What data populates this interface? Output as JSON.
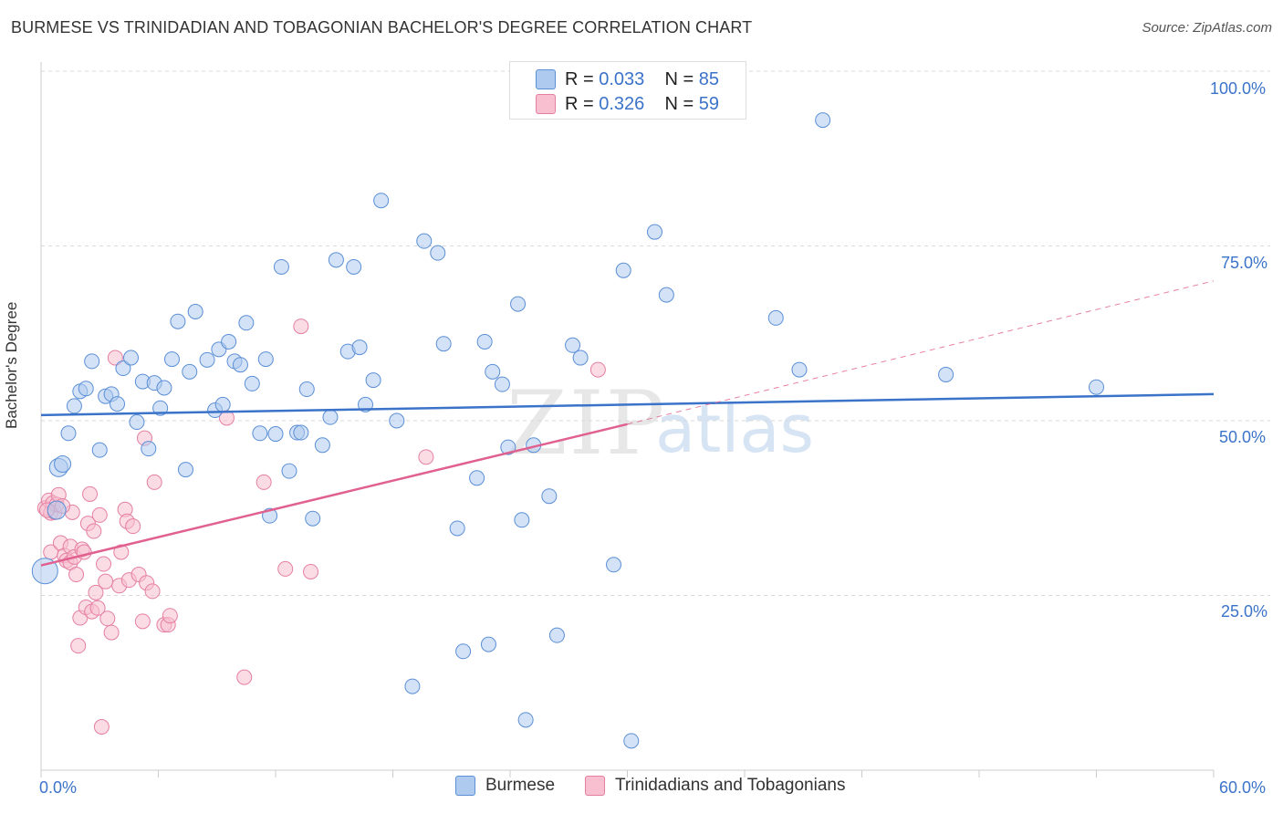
{
  "title": "BURMESE VS TRINIDADIAN AND TOBAGONIAN BACHELOR'S DEGREE CORRELATION CHART",
  "source": "Source: ZipAtlas.com",
  "watermark": {
    "zip": "ZIP",
    "atlas": "atlas"
  },
  "colors": {
    "burmese_fill": "#aecbef",
    "burmese_stroke": "#5b8fd6",
    "burmese_line": "#3b73c9",
    "trin_fill": "#f7bfd0",
    "trin_stroke": "#e57fa2",
    "trin_line": "#e0608f",
    "axis_label": "#3b73c9",
    "grid": "#d8d8d8"
  },
  "legend_top": {
    "rows": [
      {
        "r_label": "R = ",
        "r_value": "0.033",
        "n_label": "N = ",
        "n_value": "85"
      },
      {
        "r_label": "R = ",
        "r_value": "0.326",
        "n_label": "N = ",
        "n_value": "59"
      }
    ]
  },
  "legend_bottom": [
    "Burmese",
    "Trinidadians and Tobagonians"
  ],
  "chart_data": {
    "type": "scatter",
    "title": "BURMESE VS TRINIDADIAN AND TOBAGONIAN BACHELOR'S DEGREE CORRELATION CHART",
    "xlabel": "",
    "ylabel": "Bachelor's Degree",
    "xlim": [
      0,
      60
    ],
    "ylim": [
      0,
      100
    ],
    "x_tick_labels": [
      "0.0%",
      "60.0%"
    ],
    "y_tick_labels": [
      "25.0%",
      "50.0%",
      "75.0%",
      "100.0%"
    ],
    "y_ticks": [
      25,
      50,
      75,
      100
    ],
    "series": [
      {
        "name": "Burmese",
        "R": 0.033,
        "N": 85,
        "trend": {
          "x": [
            0,
            60
          ],
          "y": [
            50.8,
            53.8
          ],
          "style": "solid"
        },
        "points": [
          [
            0.2,
            28.5,
            14
          ],
          [
            0.8,
            37.2,
            10
          ],
          [
            0.9,
            43.3,
            10
          ],
          [
            1.1,
            43.8,
            9
          ],
          [
            1.4,
            48.2,
            8
          ],
          [
            1.7,
            52.1,
            8
          ],
          [
            2.0,
            54.2,
            8
          ],
          [
            2.3,
            54.6,
            8
          ],
          [
            2.6,
            58.5,
            8
          ],
          [
            3.0,
            45.8,
            8
          ],
          [
            3.3,
            53.5,
            8
          ],
          [
            3.6,
            53.8,
            8
          ],
          [
            3.9,
            52.4,
            8
          ],
          [
            4.2,
            57.5,
            8
          ],
          [
            4.6,
            59.0,
            8
          ],
          [
            4.9,
            49.8,
            8
          ],
          [
            5.2,
            55.6,
            8
          ],
          [
            5.5,
            46.0,
            8
          ],
          [
            5.8,
            55.4,
            8
          ],
          [
            6.1,
            51.8,
            8
          ],
          [
            6.3,
            54.7,
            8
          ],
          [
            6.7,
            58.8,
            8
          ],
          [
            7.0,
            64.2,
            8
          ],
          [
            7.4,
            43.0,
            8
          ],
          [
            7.6,
            57.0,
            8
          ],
          [
            7.9,
            65.6,
            8
          ],
          [
            8.5,
            58.7,
            8
          ],
          [
            8.9,
            51.5,
            8
          ],
          [
            9.1,
            60.2,
            8
          ],
          [
            9.3,
            52.3,
            8
          ],
          [
            9.6,
            61.3,
            8
          ],
          [
            9.9,
            58.5,
            8
          ],
          [
            10.2,
            58.0,
            8
          ],
          [
            10.5,
            64.0,
            8
          ],
          [
            10.8,
            55.3,
            8
          ],
          [
            11.2,
            48.2,
            8
          ],
          [
            11.5,
            58.8,
            8
          ],
          [
            11.7,
            36.4,
            8
          ],
          [
            12.0,
            48.1,
            8
          ],
          [
            12.3,
            72.0,
            8
          ],
          [
            12.7,
            42.8,
            8
          ],
          [
            13.1,
            48.3,
            8
          ],
          [
            13.3,
            48.3,
            8
          ],
          [
            13.6,
            54.5,
            8
          ],
          [
            13.9,
            36.0,
            8
          ],
          [
            14.4,
            46.5,
            8
          ],
          [
            14.8,
            50.5,
            8
          ],
          [
            15.1,
            73.0,
            8
          ],
          [
            15.7,
            59.9,
            8
          ],
          [
            16.0,
            72.0,
            8
          ],
          [
            16.3,
            60.5,
            8
          ],
          [
            16.6,
            52.3,
            8
          ],
          [
            17.0,
            55.8,
            8
          ],
          [
            17.4,
            81.5,
            8
          ],
          [
            18.2,
            50.0,
            8
          ],
          [
            19.0,
            12.0,
            8
          ],
          [
            19.6,
            75.7,
            8
          ],
          [
            20.3,
            74.0,
            8
          ],
          [
            20.6,
            61.0,
            8
          ],
          [
            21.3,
            34.6,
            8
          ],
          [
            21.6,
            17.0,
            8
          ],
          [
            22.3,
            41.8,
            8
          ],
          [
            22.7,
            61.3,
            8
          ],
          [
            22.9,
            18.0,
            8
          ],
          [
            23.1,
            57.0,
            8
          ],
          [
            23.6,
            55.2,
            8
          ],
          [
            23.9,
            46.2,
            8
          ],
          [
            24.4,
            66.7,
            8
          ],
          [
            24.6,
            35.8,
            8
          ],
          [
            24.8,
            7.2,
            8
          ],
          [
            25.2,
            46.5,
            8
          ],
          [
            26.0,
            39.2,
            8
          ],
          [
            26.4,
            19.3,
            8
          ],
          [
            27.2,
            60.8,
            8
          ],
          [
            27.6,
            59.0,
            8
          ],
          [
            29.3,
            29.4,
            8
          ],
          [
            29.8,
            71.5,
            8
          ],
          [
            30.2,
            4.2,
            8
          ],
          [
            31.4,
            77.0,
            8
          ],
          [
            32.0,
            68.0,
            8
          ],
          [
            37.6,
            64.7,
            8
          ],
          [
            38.8,
            57.3,
            8
          ],
          [
            40.0,
            93.0,
            8
          ],
          [
            46.3,
            56.6,
            8
          ],
          [
            54.0,
            54.8,
            8
          ]
        ]
      },
      {
        "name": "Trinidadians and Tobagonians",
        "R": 0.326,
        "N": 59,
        "trend": {
          "x": [
            0,
            30
          ],
          "y": [
            29.3,
            49.5
          ],
          "style": "solid"
        },
        "trend_extended": {
          "x": [
            30,
            60
          ],
          "y": [
            49.5,
            70.0
          ],
          "style": "dashed"
        },
        "points": [
          [
            0.2,
            37.5,
            8
          ],
          [
            0.4,
            38.6,
            8
          ],
          [
            0.5,
            31.2,
            8
          ],
          [
            0.5,
            36.8,
            8
          ],
          [
            0.6,
            38.2,
            8
          ],
          [
            0.7,
            36.9,
            8
          ],
          [
            0.8,
            38.0,
            8
          ],
          [
            0.9,
            39.4,
            8
          ],
          [
            1.0,
            32.5,
            8
          ],
          [
            1.2,
            30.7,
            8
          ],
          [
            1.3,
            30.0,
            8
          ],
          [
            1.5,
            32.0,
            8
          ],
          [
            1.5,
            29.7,
            8
          ],
          [
            1.6,
            36.9,
            8
          ],
          [
            1.7,
            30.5,
            8
          ],
          [
            1.8,
            28.0,
            8
          ],
          [
            1.9,
            17.8,
            8
          ],
          [
            2.0,
            21.8,
            8
          ],
          [
            2.1,
            31.6,
            8
          ],
          [
            2.2,
            31.2,
            8
          ],
          [
            2.3,
            23.3,
            8
          ],
          [
            2.4,
            35.3,
            8
          ],
          [
            2.5,
            39.5,
            8
          ],
          [
            2.6,
            22.7,
            8
          ],
          [
            2.7,
            34.2,
            8
          ],
          [
            2.8,
            25.4,
            8
          ],
          [
            2.9,
            23.2,
            8
          ],
          [
            3.0,
            36.5,
            8
          ],
          [
            3.1,
            6.2,
            8
          ],
          [
            3.2,
            29.5,
            8
          ],
          [
            3.3,
            27.0,
            8
          ],
          [
            3.4,
            21.7,
            8
          ],
          [
            3.6,
            19.7,
            8
          ],
          [
            3.8,
            59.0,
            8
          ],
          [
            4.0,
            26.4,
            8
          ],
          [
            4.1,
            31.2,
            8
          ],
          [
            4.3,
            37.3,
            8
          ],
          [
            4.4,
            35.6,
            8
          ],
          [
            4.5,
            27.2,
            8
          ],
          [
            4.7,
            34.9,
            8
          ],
          [
            5.0,
            28.0,
            8
          ],
          [
            5.2,
            21.3,
            8
          ],
          [
            5.3,
            47.5,
            8
          ],
          [
            5.4,
            26.8,
            8
          ],
          [
            5.7,
            25.6,
            8
          ],
          [
            5.8,
            41.2,
            8
          ],
          [
            6.3,
            20.8,
            8
          ],
          [
            6.5,
            20.8,
            8
          ],
          [
            6.6,
            22.1,
            8
          ],
          [
            9.5,
            50.4,
            8
          ],
          [
            10.4,
            13.3,
            8
          ],
          [
            11.4,
            41.2,
            8
          ],
          [
            12.5,
            28.8,
            8
          ],
          [
            13.3,
            63.5,
            8
          ],
          [
            13.8,
            28.4,
            8
          ],
          [
            19.7,
            44.8,
            8
          ],
          [
            28.5,
            57.3,
            8
          ],
          [
            1.1,
            37.8,
            8
          ],
          [
            0.3,
            37.2,
            8
          ]
        ]
      }
    ]
  }
}
